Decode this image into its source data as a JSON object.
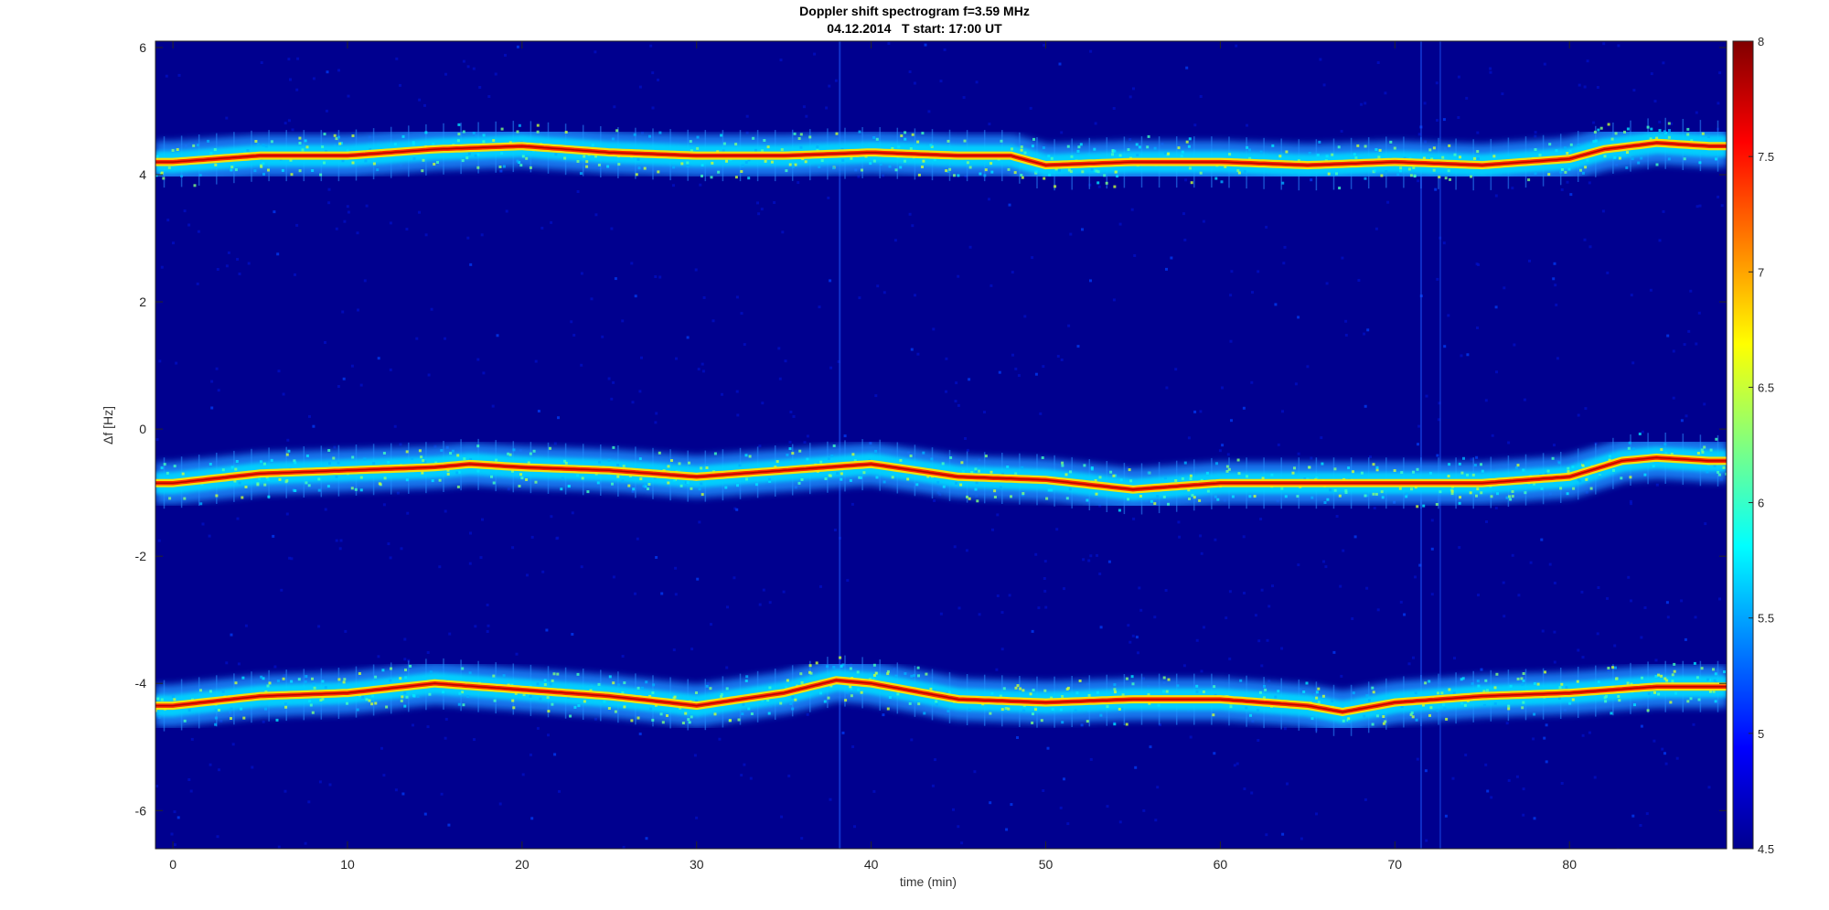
{
  "title_line1": "Doppler shift spectrogram f=3.59 MHz",
  "title_line2": "04.12.2014   T start: 17:00 UT",
  "chart_data": {
    "type": "heatmap",
    "title": "Doppler shift spectrogram f=3.59 MHz\n04.12.2014   T start: 17:00 UT",
    "xlabel": "time (min)",
    "ylabel": "Δf [Hz]",
    "xlim": [
      -1,
      89
    ],
    "ylim": [
      -6.6,
      6.1
    ],
    "xticks": [
      0,
      10,
      20,
      30,
      40,
      50,
      60,
      70,
      80
    ],
    "yticks": [
      -6,
      -4,
      -2,
      0,
      2,
      4,
      6
    ],
    "colorbar": {
      "range": [
        4.5,
        8
      ],
      "ticks": [
        4.5,
        5,
        5.5,
        6,
        6.5,
        7,
        7.5,
        8
      ],
      "colormap": "jet",
      "position": "right"
    },
    "background_color": "#00008f",
    "traces": [
      {
        "x": [
          0,
          5,
          10,
          15,
          20,
          25,
          30,
          35,
          40,
          45,
          48,
          50,
          55,
          60,
          65,
          70,
          75,
          80,
          82,
          85,
          88
        ],
        "y": [
          4.2,
          4.3,
          4.3,
          4.4,
          4.45,
          4.35,
          4.3,
          4.3,
          4.35,
          4.3,
          4.3,
          4.15,
          4.2,
          4.2,
          4.15,
          4.2,
          4.15,
          4.25,
          4.4,
          4.5,
          4.45
        ]
      },
      {
        "x": [
          0,
          5,
          10,
          15,
          17,
          20,
          25,
          30,
          35,
          40,
          45,
          50,
          55,
          60,
          65,
          70,
          75,
          80,
          83,
          85,
          88
        ],
        "y": [
          -0.85,
          -0.7,
          -0.65,
          -0.6,
          -0.55,
          -0.6,
          -0.65,
          -0.75,
          -0.65,
          -0.55,
          -0.75,
          -0.8,
          -0.95,
          -0.85,
          -0.85,
          -0.85,
          -0.85,
          -0.75,
          -0.5,
          -0.45,
          -0.5
        ]
      },
      {
        "x": [
          0,
          5,
          10,
          15,
          20,
          25,
          30,
          35,
          38,
          40,
          45,
          50,
          55,
          60,
          65,
          67,
          70,
          75,
          80,
          85,
          88
        ],
        "y": [
          -4.35,
          -4.2,
          -4.15,
          -4.0,
          -4.1,
          -4.2,
          -4.35,
          -4.15,
          -3.95,
          -4.0,
          -4.25,
          -4.3,
          -4.25,
          -4.25,
          -4.35,
          -4.45,
          -4.3,
          -4.2,
          -4.15,
          -4.05,
          -4.05
        ]
      }
    ]
  }
}
